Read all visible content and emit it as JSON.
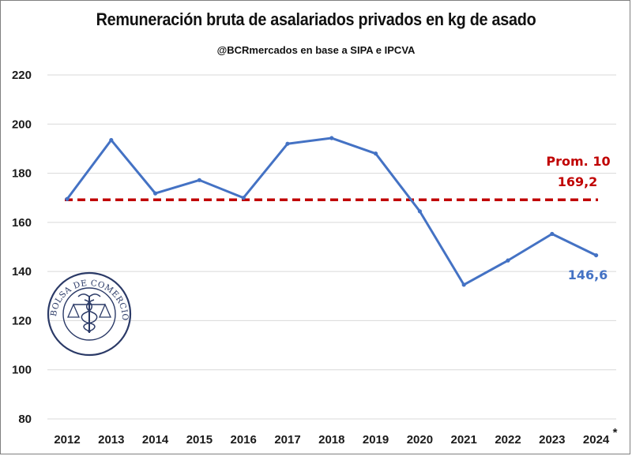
{
  "chart_data": {
    "type": "line",
    "title": "Remuneración bruta de asalariados privados en kg de asado",
    "subtitle": "@BCRmercados en base a SIPA e IPCVA",
    "categories": [
      "2012",
      "2013",
      "2014",
      "2015",
      "2016",
      "2017",
      "2018",
      "2019",
      "2020",
      "2021",
      "2022",
      "2023",
      "2024"
    ],
    "last_category_mark": "*",
    "series": [
      {
        "name": "Remuneración en kg de asado",
        "color": "#4472c4",
        "values": [
          169.5,
          193.5,
          171.8,
          177.2,
          170,
          192,
          194.3,
          188,
          164.5,
          134.6,
          144.5,
          155.3,
          146.6
        ]
      }
    ],
    "average": {
      "value": 169.2,
      "label_line1": "Prom. 10",
      "label_line2": "169,2",
      "color": "#c00000"
    },
    "last_value_label": "146,6",
    "yticks": [
      80,
      100,
      120,
      140,
      160,
      180,
      200,
      220
    ],
    "ylim": [
      80,
      220
    ],
    "grid": true
  },
  "seal": {
    "text": "BOLSA DE COMERCIO DE ROSARIO"
  }
}
